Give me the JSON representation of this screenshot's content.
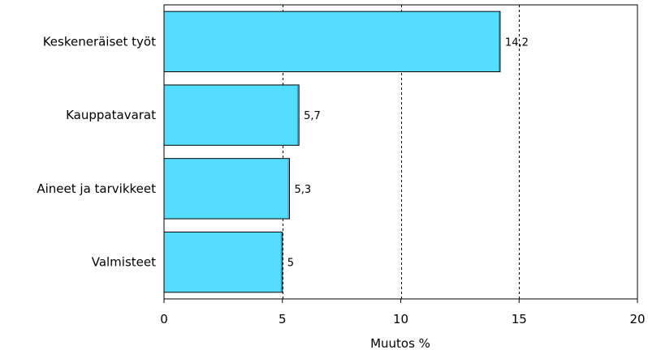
{
  "chart_data": {
    "type": "bar",
    "orientation": "horizontal",
    "categories": [
      "Keskeneräiset työt",
      "Kauppatavarat",
      "Aineet ja tarvikkeet",
      "Valmisteet"
    ],
    "values": [
      14.2,
      5.7,
      5.3,
      5
    ],
    "value_labels": [
      "14,2",
      "5,7",
      "5,3",
      "5"
    ],
    "xlabel": "Muutos %",
    "xlim": [
      0,
      20
    ],
    "xticks": [
      0,
      5,
      10,
      15,
      20
    ],
    "xtick_labels": [
      "0",
      "5",
      "10",
      "15",
      "20"
    ],
    "grid": "vertical dashed",
    "bar_color": "#55ddff",
    "bar_edge_color": "#000000"
  }
}
